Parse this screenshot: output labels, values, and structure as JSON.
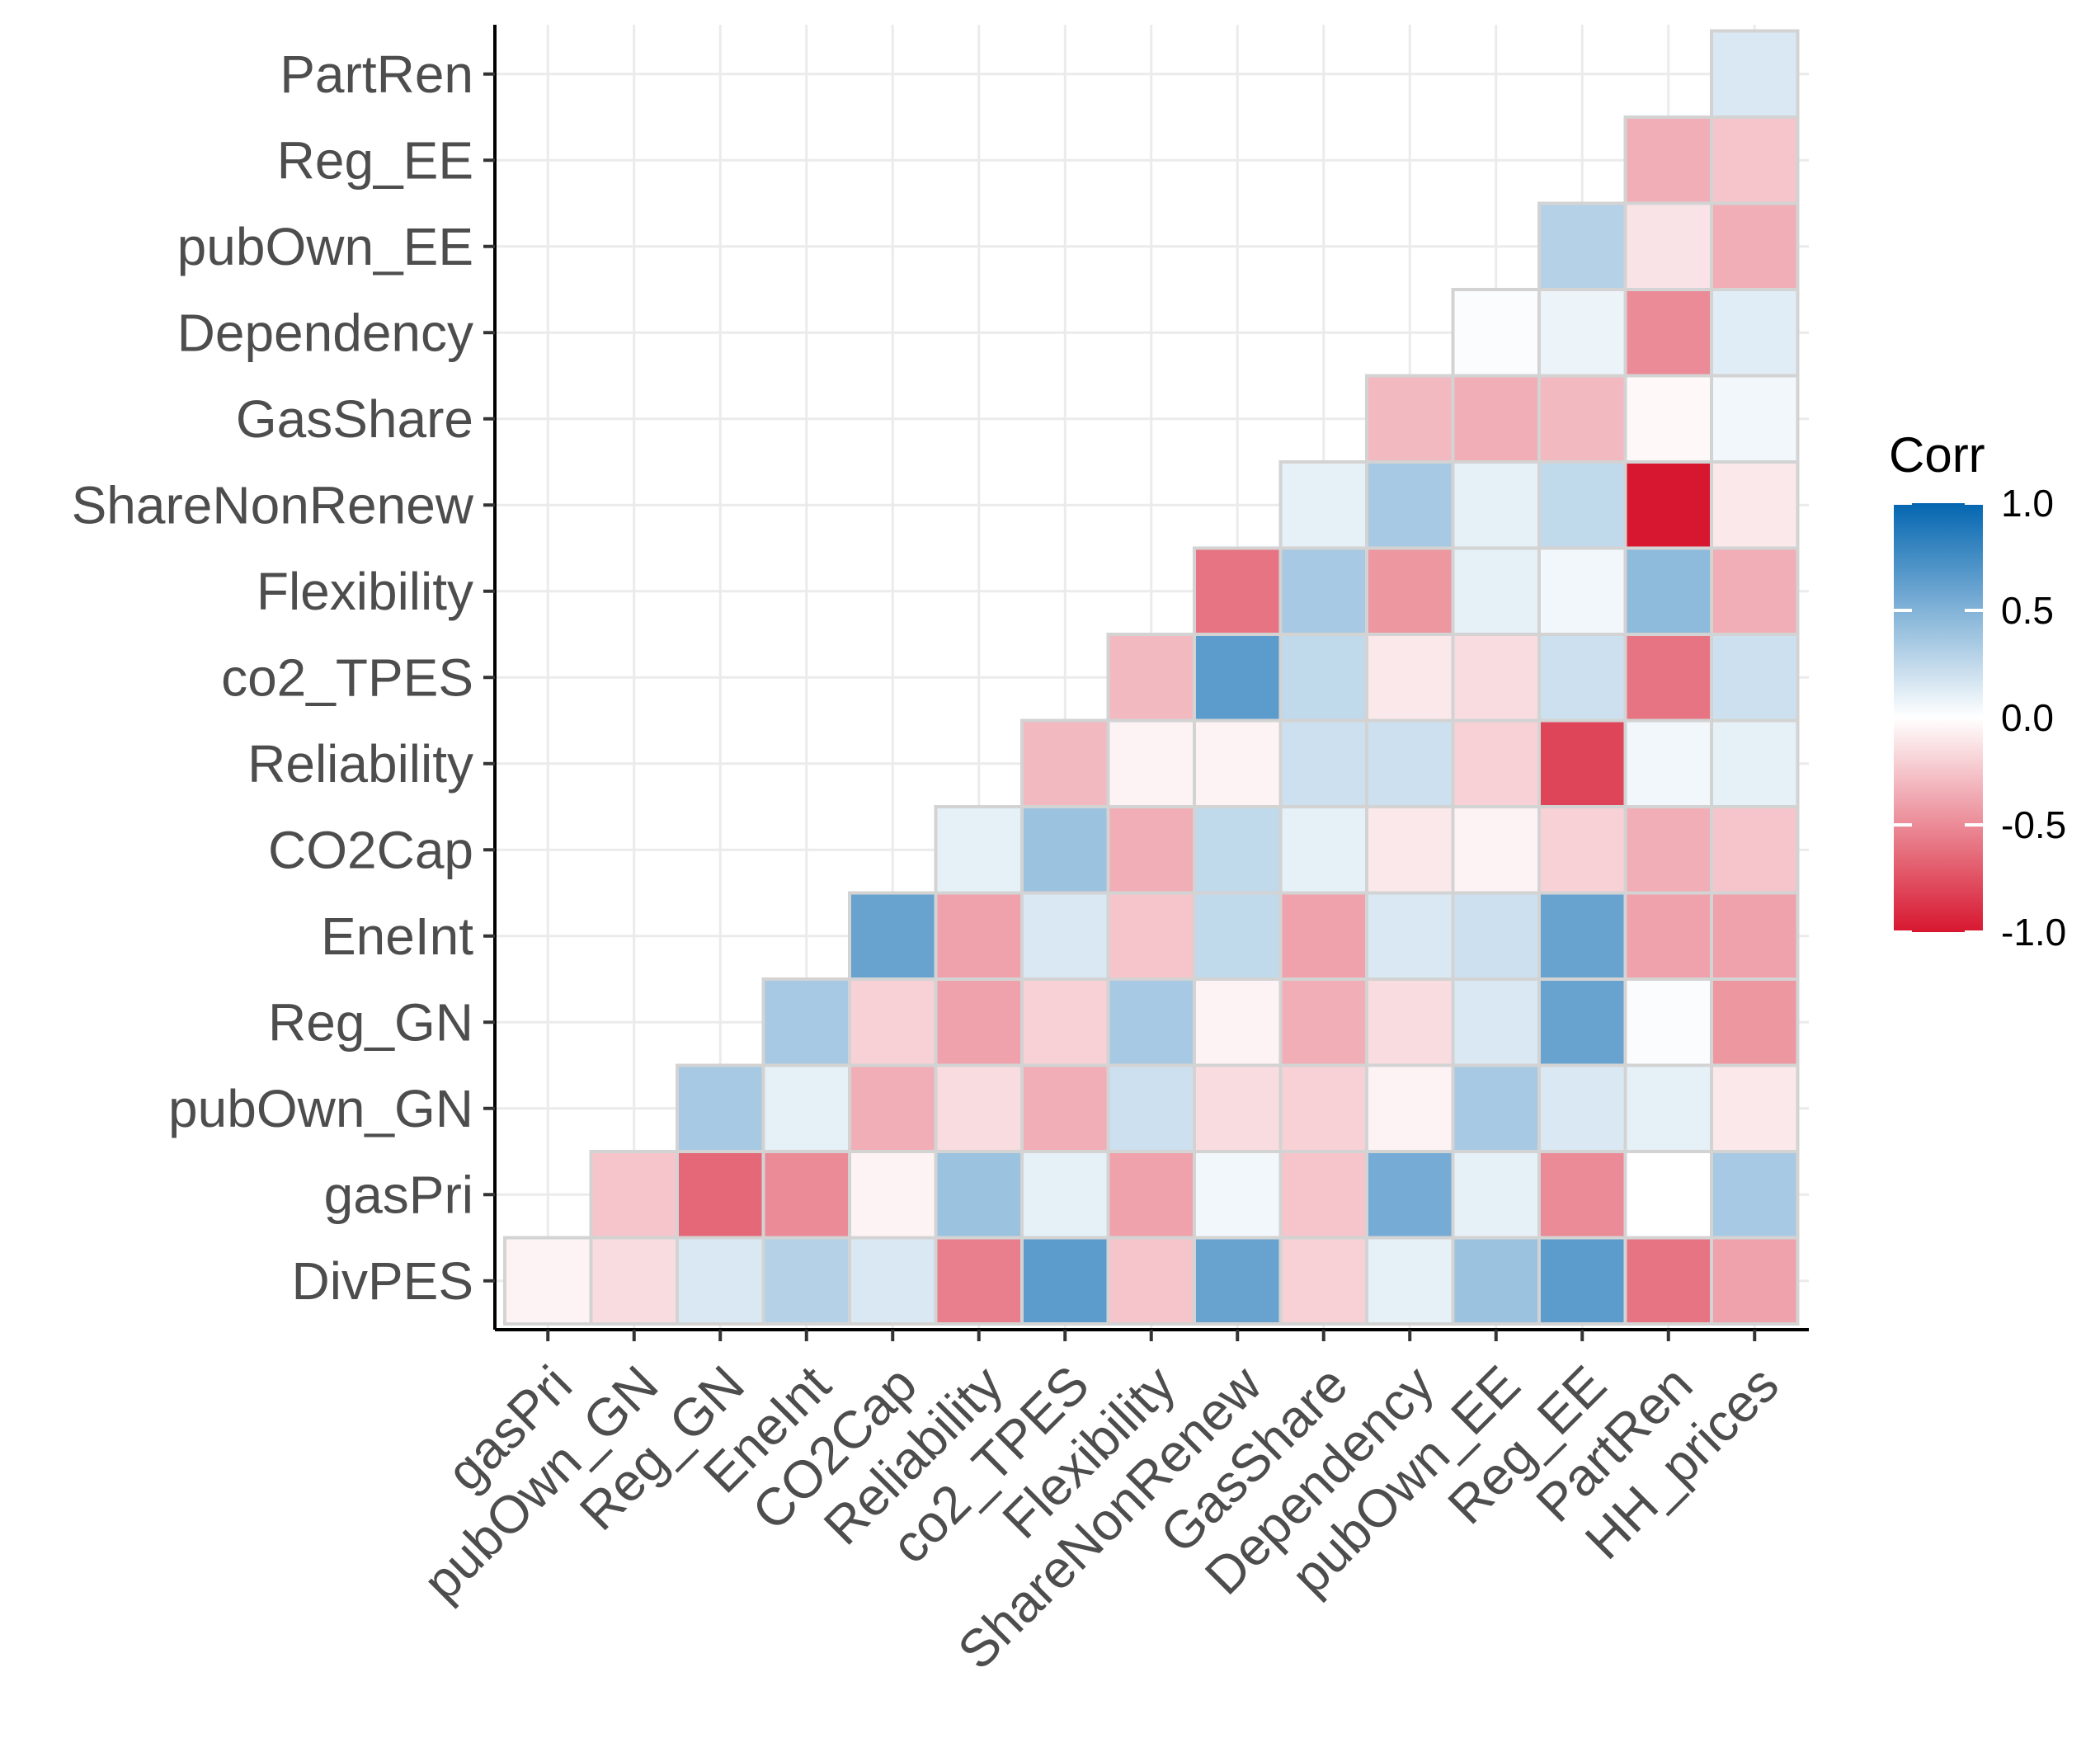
{
  "chart_data": {
    "type": "heatmap",
    "title": "",
    "xlabel": "",
    "ylabel": "",
    "x_categories": [
      "gasPri",
      "pubOwn_GN",
      "Reg_GN",
      "EneInt",
      "CO2Cap",
      "Reliability",
      "co2_TPES",
      "Flexibility",
      "ShareNonRenew",
      "GasShare",
      "Dependency",
      "pubOwn_EE",
      "Reg_EE",
      "PartRen",
      "HH_prices"
    ],
    "y_categories": [
      "DivPES",
      "gasPri",
      "pubOwn_GN",
      "Reg_GN",
      "EneInt",
      "CO2Cap",
      "Reliability",
      "co2_TPES",
      "Flexibility",
      "ShareNonRenew",
      "GasShare",
      "Dependency",
      "pubOwn_EE",
      "Reg_EE",
      "PartRen"
    ],
    "values": [
      [
        -0.05,
        -0.15,
        0.15,
        0.3,
        0.15,
        -0.55,
        0.65,
        -0.25,
        0.6,
        -0.2,
        0.1,
        0.4,
        0.65,
        -0.6,
        -0.4
      ],
      [
        null,
        -0.25,
        -0.65,
        -0.5,
        -0.05,
        0.4,
        0.1,
        -0.4,
        0.05,
        -0.25,
        0.55,
        0.1,
        -0.5,
        0.0,
        0.35
      ],
      [
        null,
        null,
        0.35,
        0.1,
        -0.35,
        -0.15,
        -0.35,
        0.2,
        -0.15,
        -0.2,
        -0.05,
        0.35,
        0.15,
        0.1,
        -0.1
      ],
      [
        null,
        null,
        null,
        0.35,
        -0.2,
        -0.4,
        -0.2,
        0.35,
        -0.05,
        -0.35,
        -0.15,
        0.15,
        0.6,
        0.02,
        -0.45
      ],
      [
        null,
        null,
        null,
        null,
        0.6,
        -0.4,
        0.15,
        -0.25,
        0.25,
        -0.4,
        0.15,
        0.2,
        0.6,
        -0.4,
        -0.4
      ],
      [
        null,
        null,
        null,
        null,
        null,
        0.1,
        0.4,
        -0.35,
        0.25,
        0.1,
        -0.1,
        -0.05,
        -0.2,
        -0.35,
        -0.25
      ],
      [
        null,
        null,
        null,
        null,
        null,
        null,
        -0.3,
        -0.05,
        -0.05,
        0.2,
        0.2,
        -0.2,
        -0.8,
        0.05,
        0.1
      ],
      [
        null,
        null,
        null,
        null,
        null,
        null,
        null,
        -0.3,
        0.65,
        0.25,
        -0.1,
        -0.15,
        0.2,
        -0.6,
        0.2
      ],
      [
        null,
        null,
        null,
        null,
        null,
        null,
        null,
        null,
        -0.6,
        0.35,
        -0.45,
        0.1,
        0.05,
        0.45,
        -0.35
      ],
      [
        null,
        null,
        null,
        null,
        null,
        null,
        null,
        null,
        null,
        0.1,
        0.35,
        0.1,
        0.25,
        -1.0,
        -0.1
      ],
      [
        null,
        null,
        null,
        null,
        null,
        null,
        null,
        null,
        null,
        null,
        -0.3,
        -0.35,
        -0.3,
        -0.03,
        0.05
      ],
      [
        null,
        null,
        null,
        null,
        null,
        null,
        null,
        null,
        null,
        null,
        null,
        0.02,
        0.07,
        -0.5,
        0.12
      ],
      [
        null,
        null,
        null,
        null,
        null,
        null,
        null,
        null,
        null,
        null,
        null,
        null,
        0.3,
        -0.12,
        -0.35
      ],
      [
        null,
        null,
        null,
        null,
        null,
        null,
        null,
        null,
        null,
        null,
        null,
        null,
        null,
        -0.35,
        -0.25
      ],
      [
        null,
        null,
        null,
        null,
        null,
        null,
        null,
        null,
        null,
        null,
        null,
        null,
        null,
        null,
        0.15
      ]
    ],
    "color_scale": {
      "low": "#D7172F",
      "mid": "#FFFFFF",
      "high": "#0466B0",
      "limits": [
        -1,
        1
      ]
    },
    "legend": {
      "title": "Corr",
      "ticks": [
        1.0,
        0.5,
        0.0,
        -0.5,
        -1.0
      ],
      "tick_labels": [
        "1.0",
        "0.5",
        "0.0",
        "-0.5",
        "-1.0"
      ],
      "placement": "right"
    },
    "grid": true
  }
}
